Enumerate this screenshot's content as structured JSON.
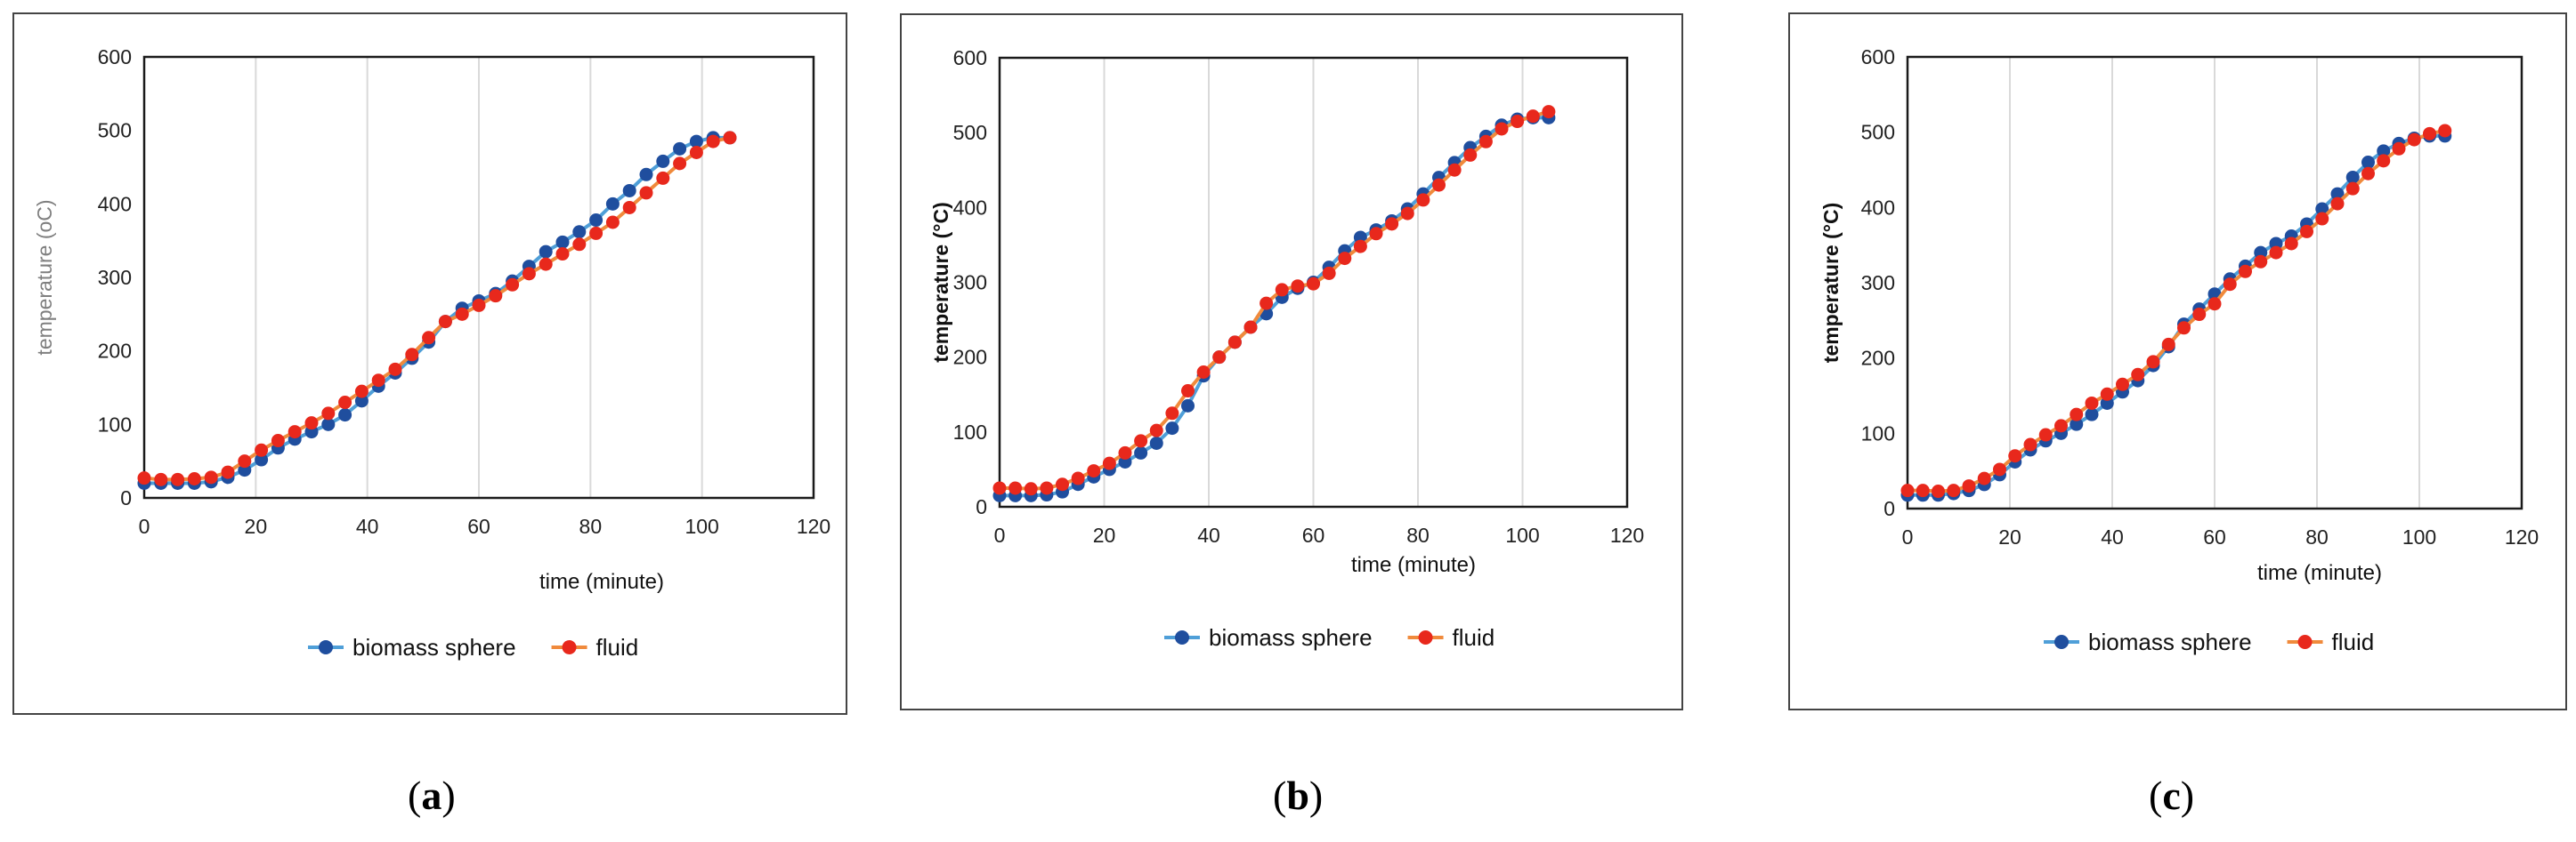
{
  "colors": {
    "biomass_sphere": "#1f4e9e",
    "biomass_sphere_line": "#4f9fd8",
    "fluid": "#e8281c",
    "fluid_line": "#f08a3c",
    "plot_frame": "#1a1a1a",
    "grid": "#d9d9d9"
  },
  "chart_data": [
    {
      "type": "line",
      "panel": "a",
      "caption_letter": "a",
      "title": "",
      "xlabel": "time (minute)",
      "ylabel": "temperature (oC)",
      "xlim": [
        0,
        120
      ],
      "ylim": [
        0,
        600
      ],
      "xticks": [
        "0",
        "20",
        "40",
        "60",
        "80",
        "100",
        "120"
      ],
      "yticks": [
        "0",
        "100",
        "200",
        "300",
        "400",
        "500",
        "600"
      ],
      "grid": "vertical",
      "legend_position": "bottom",
      "series": [
        {
          "name": "biomass sphere",
          "marker": "circle",
          "x": [
            0,
            3,
            6,
            9,
            12,
            15,
            18,
            21,
            24,
            27,
            30,
            33,
            36,
            39,
            42,
            45,
            48,
            51,
            54,
            57,
            60,
            63,
            66,
            69,
            72,
            75,
            78,
            81,
            84,
            87,
            90,
            93,
            96,
            99,
            102,
            105
          ],
          "y": [
            20,
            20,
            20,
            20,
            22,
            28,
            38,
            52,
            68,
            80,
            90,
            100,
            113,
            132,
            152,
            170,
            190,
            212,
            240,
            258,
            268,
            278,
            295,
            315,
            335,
            348,
            362,
            378,
            400,
            418,
            440,
            458,
            475,
            485,
            490,
            490
          ]
        },
        {
          "name": "fluid",
          "marker": "circle",
          "x": [
            0,
            3,
            6,
            9,
            12,
            15,
            18,
            21,
            24,
            27,
            30,
            33,
            36,
            39,
            42,
            45,
            48,
            51,
            54,
            57,
            60,
            63,
            66,
            69,
            72,
            75,
            78,
            81,
            84,
            87,
            90,
            93,
            96,
            99,
            102,
            105
          ],
          "y": [
            27,
            25,
            25,
            26,
            28,
            35,
            50,
            65,
            78,
            90,
            102,
            115,
            130,
            145,
            160,
            175,
            195,
            218,
            240,
            250,
            262,
            275,
            290,
            305,
            318,
            332,
            345,
            360,
            375,
            395,
            415,
            435,
            455,
            470,
            485,
            490
          ]
        }
      ]
    },
    {
      "type": "line",
      "panel": "b",
      "caption_letter": "b",
      "title": "",
      "xlabel": "time (minute)",
      "ylabel": "temperature (°C)",
      "xlim": [
        0,
        120
      ],
      "ylim": [
        0,
        600
      ],
      "xticks": [
        "0",
        "20",
        "40",
        "60",
        "80",
        "100",
        "120"
      ],
      "yticks": [
        "0",
        "100",
        "200",
        "300",
        "400",
        "500",
        "600"
      ],
      "grid": "vertical",
      "legend_position": "bottom",
      "series": [
        {
          "name": "biomass sphere",
          "marker": "circle",
          "x": [
            0,
            3,
            6,
            9,
            12,
            15,
            18,
            21,
            24,
            27,
            30,
            33,
            36,
            39,
            42,
            45,
            48,
            51,
            54,
            57,
            60,
            63,
            66,
            69,
            72,
            75,
            78,
            81,
            84,
            87,
            90,
            93,
            96,
            99,
            102,
            105
          ],
          "y": [
            15,
            15,
            15,
            16,
            20,
            30,
            40,
            50,
            60,
            72,
            85,
            105,
            135,
            175,
            200,
            220,
            240,
            258,
            280,
            292,
            300,
            320,
            342,
            360,
            370,
            382,
            398,
            418,
            440,
            460,
            480,
            495,
            510,
            518,
            520,
            520
          ]
        },
        {
          "name": "fluid",
          "marker": "circle",
          "x": [
            0,
            3,
            6,
            9,
            12,
            15,
            18,
            21,
            24,
            27,
            30,
            33,
            36,
            39,
            42,
            45,
            48,
            51,
            54,
            57,
            60,
            63,
            66,
            69,
            72,
            75,
            78,
            81,
            84,
            87,
            90,
            93,
            96,
            99,
            102,
            105
          ],
          "y": [
            25,
            25,
            24,
            25,
            30,
            38,
            48,
            58,
            72,
            88,
            102,
            125,
            155,
            180,
            200,
            220,
            240,
            272,
            290,
            295,
            298,
            312,
            332,
            348,
            365,
            378,
            392,
            410,
            430,
            450,
            470,
            488,
            505,
            515,
            522,
            528
          ]
        }
      ]
    },
    {
      "type": "line",
      "panel": "c",
      "caption_letter": "c",
      "title": "",
      "xlabel": "time (minute)",
      "ylabel": "temperature (°C)",
      "xlim": [
        0,
        120
      ],
      "ylim": [
        0,
        600
      ],
      "xticks": [
        "0",
        "20",
        "40",
        "60",
        "80",
        "100",
        "120"
      ],
      "yticks": [
        "0",
        "100",
        "200",
        "300",
        "400",
        "500",
        "600"
      ],
      "grid": "vertical",
      "legend_position": "bottom",
      "series": [
        {
          "name": "biomass sphere",
          "marker": "circle",
          "x": [
            0,
            3,
            6,
            9,
            12,
            15,
            18,
            21,
            24,
            27,
            30,
            33,
            36,
            39,
            42,
            45,
            48,
            51,
            54,
            57,
            60,
            63,
            66,
            69,
            72,
            75,
            78,
            81,
            84,
            87,
            90,
            93,
            96,
            99,
            102,
            105
          ],
          "y": [
            18,
            18,
            18,
            20,
            24,
            32,
            45,
            62,
            78,
            90,
            100,
            112,
            125,
            140,
            155,
            170,
            190,
            215,
            245,
            265,
            285,
            305,
            322,
            340,
            352,
            362,
            378,
            398,
            418,
            440,
            460,
            475,
            485,
            492,
            495,
            495
          ]
        },
        {
          "name": "fluid",
          "marker": "circle",
          "x": [
            0,
            3,
            6,
            9,
            12,
            15,
            18,
            21,
            24,
            27,
            30,
            33,
            36,
            39,
            42,
            45,
            48,
            51,
            54,
            57,
            60,
            63,
            66,
            69,
            72,
            75,
            78,
            81,
            84,
            87,
            90,
            93,
            96,
            99,
            102,
            105
          ],
          "y": [
            24,
            24,
            23,
            24,
            30,
            40,
            52,
            70,
            85,
            98,
            110,
            125,
            140,
            152,
            165,
            178,
            195,
            218,
            240,
            258,
            272,
            298,
            315,
            328,
            340,
            352,
            368,
            385,
            405,
            425,
            445,
            462,
            478,
            490,
            498,
            502
          ]
        }
      ]
    }
  ]
}
